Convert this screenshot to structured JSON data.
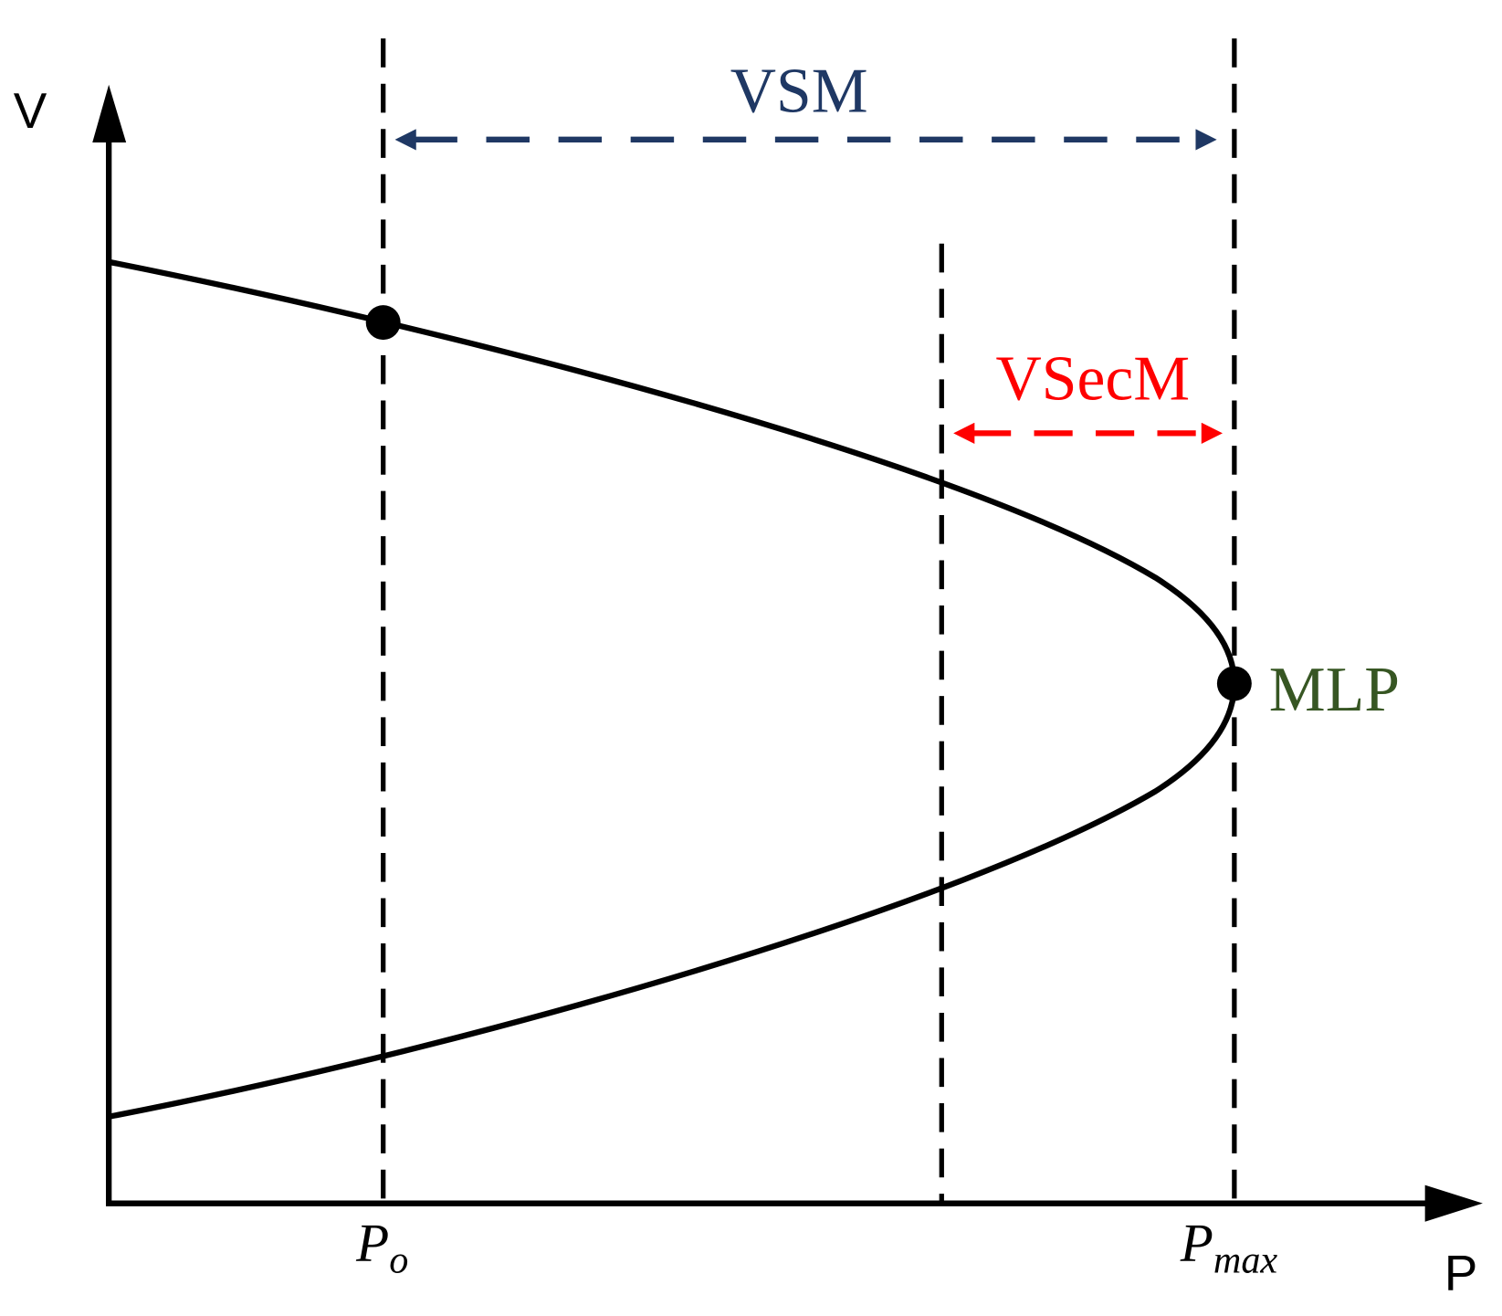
{
  "axes": {
    "y_label": "V",
    "x_label": "P"
  },
  "annotations": {
    "vsm": "VSM",
    "vsecm": "VSecM",
    "mlp": "MLP"
  },
  "ticks": {
    "p_o": {
      "main": "P",
      "sub": "o"
    },
    "p_max": {
      "main": "P",
      "sub": "max"
    }
  }
}
